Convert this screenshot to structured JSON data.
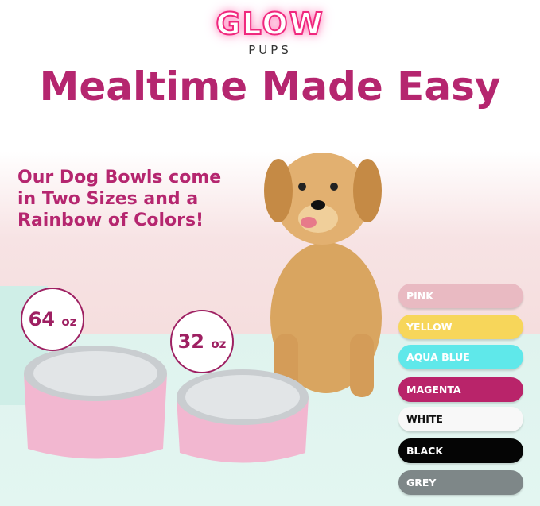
{
  "logo": {
    "brand": "GLOW",
    "sub": "PUPS"
  },
  "headline": "Mealtime Made Easy",
  "subheadline": [
    "Our Dog Bowls come",
    "in Two Sizes and a",
    "Rainbow of Colors!"
  ],
  "sizes": [
    {
      "value": "64",
      "unit": "oz"
    },
    {
      "value": "32",
      "unit": "oz"
    }
  ],
  "colors": [
    {
      "label": "PINK",
      "bg": "#e9bac2",
      "fg": "#ffffff"
    },
    {
      "label": "YELLOW",
      "bg": "#f7d65a",
      "fg": "#ffffff"
    },
    {
      "label": "AQUA BLUE",
      "bg": "#5fe8ea",
      "fg": "#ffffff"
    },
    {
      "label": "MAGENTA",
      "bg": "#b9246a",
      "fg": "#ffffff"
    },
    {
      "label": "WHITE",
      "bg": "#f8f8f8",
      "fg": "#111111"
    },
    {
      "label": "BLACK",
      "bg": "#050505",
      "fg": "#ffffff"
    },
    {
      "label": "GREY",
      "bg": "#7e8788",
      "fg": "#ffffff"
    }
  ],
  "accent": "#b5266f"
}
